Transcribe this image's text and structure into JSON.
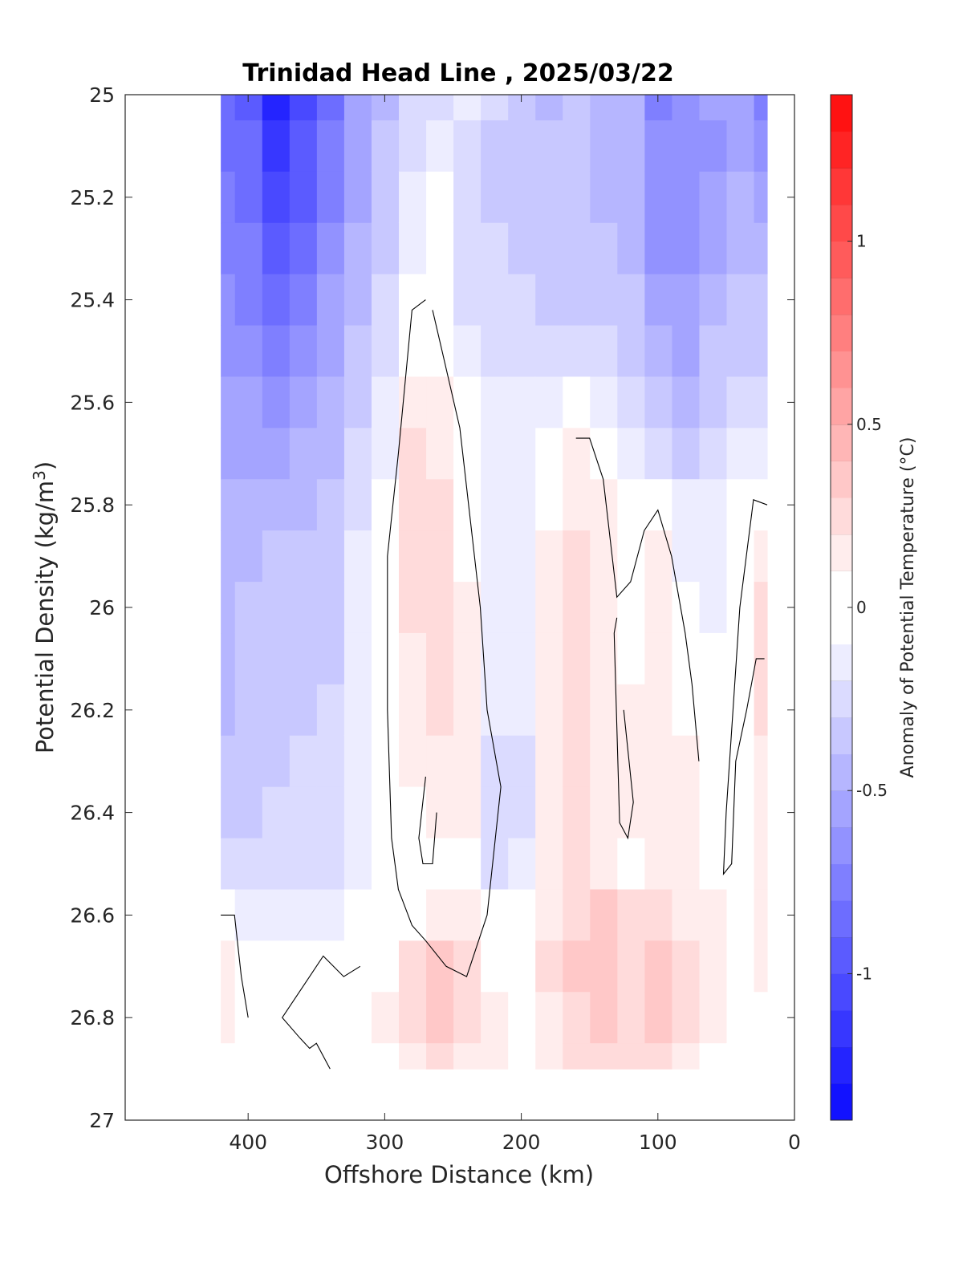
{
  "chart_data": {
    "type": "heatmap",
    "subtype": "filled contour section",
    "title": "Trinidad Head Line , 2025/03/22",
    "xlabel": "Offshore Distance (km)",
    "ylabel_main": "Potential Density (kg/m",
    "ylabel_sup": "3",
    "ylabel_end": ")",
    "colorbar_label": "Anomaly of Potential Temperature (°C)",
    "x_axis": {
      "reversed": true,
      "xlim": [
        0,
        490
      ],
      "ticks": [
        400,
        300,
        200,
        100,
        0
      ],
      "tick_labels": [
        "400",
        "300",
        "200",
        "100",
        "0"
      ]
    },
    "y_axis": {
      "reversed": true,
      "ylim": [
        25,
        27
      ],
      "ticks": [
        25,
        25.2,
        25.4,
        25.6,
        25.8,
        26,
        26.2,
        26.4,
        26.6,
        26.8,
        27
      ],
      "tick_labels": [
        "25",
        "25.2",
        "25.4",
        "25.6",
        "25.8",
        "26",
        "26.2",
        "26.4",
        "26.6",
        "26.8",
        "27"
      ]
    },
    "colorbar": {
      "range": [
        -1.4,
        1.4
      ],
      "level_step": 0.1,
      "ticks": [
        -1,
        -0.5,
        0,
        0.5,
        1
      ],
      "tick_labels": [
        "-1",
        "-0.5",
        "0",
        "0.5",
        "1"
      ],
      "colormap": "blue-white-red",
      "neg_color": "#0000ff",
      "pos_color": "#ff0000",
      "zero_color": "#ffffff"
    },
    "data_extent": {
      "x": [
        20,
        420
      ],
      "y": [
        25,
        26.9
      ]
    },
    "grid": {
      "x": [
        20,
        40,
        60,
        80,
        100,
        120,
        140,
        160,
        180,
        200,
        220,
        240,
        260,
        280,
        300,
        320,
        340,
        360,
        380,
        400,
        420
      ],
      "y": [
        25.0,
        25.1,
        25.2,
        25.3,
        25.4,
        25.5,
        25.6,
        25.7,
        25.8,
        25.9,
        26.0,
        26.1,
        26.2,
        26.3,
        26.4,
        26.5,
        26.6,
        26.7,
        26.8,
        26.9
      ],
      "z": [
        [
          -0.75,
          -0.55,
          -0.55,
          -0.6,
          -0.7,
          -0.45,
          -0.45,
          -0.35,
          -0.4,
          -0.3,
          -0.25,
          -0.15,
          -0.2,
          -0.25,
          -0.4,
          -0.55,
          -0.8,
          -1.0,
          -1.2,
          -0.9,
          -0.85
        ],
        [
          -0.6,
          -0.5,
          -0.6,
          -0.65,
          -0.65,
          -0.45,
          -0.4,
          -0.35,
          -0.35,
          -0.3,
          -0.3,
          -0.2,
          -0.1,
          -0.2,
          -0.35,
          -0.5,
          -0.75,
          -0.95,
          -1.1,
          -0.85,
          -0.8
        ],
        [
          -0.55,
          -0.45,
          -0.55,
          -0.65,
          -0.65,
          -0.45,
          -0.4,
          -0.35,
          -0.35,
          -0.3,
          -0.3,
          -0.25,
          -0.05,
          -0.15,
          -0.3,
          -0.5,
          -0.7,
          -0.9,
          -1.0,
          -0.8,
          -0.75
        ],
        [
          -0.45,
          -0.4,
          -0.5,
          -0.6,
          -0.6,
          -0.4,
          -0.35,
          -0.35,
          -0.3,
          -0.3,
          -0.25,
          -0.25,
          -0.05,
          -0.1,
          -0.3,
          -0.45,
          -0.6,
          -0.8,
          -0.9,
          -0.75,
          -0.7
        ],
        [
          -0.35,
          -0.35,
          -0.45,
          -0.55,
          -0.55,
          -0.35,
          -0.35,
          -0.3,
          -0.3,
          -0.25,
          -0.25,
          -0.2,
          0.0,
          -0.05,
          -0.25,
          -0.4,
          -0.55,
          -0.7,
          -0.8,
          -0.7,
          -0.65
        ],
        [
          -0.3,
          -0.3,
          -0.35,
          -0.5,
          -0.45,
          -0.3,
          -0.25,
          -0.2,
          -0.2,
          -0.2,
          -0.2,
          -0.1,
          0.05,
          0.05,
          -0.2,
          -0.35,
          -0.5,
          -0.6,
          -0.7,
          -0.6,
          -0.6
        ],
        [
          -0.2,
          -0.25,
          -0.3,
          -0.4,
          -0.35,
          -0.2,
          -0.15,
          -0.05,
          -0.1,
          -0.15,
          -0.15,
          -0.05,
          0.1,
          0.15,
          -0.15,
          -0.3,
          -0.45,
          -0.55,
          -0.6,
          -0.55,
          -0.55
        ],
        [
          -0.1,
          -0.15,
          -0.2,
          -0.3,
          -0.25,
          -0.1,
          0.0,
          0.1,
          0.0,
          -0.1,
          -0.1,
          0.0,
          0.15,
          0.2,
          -0.1,
          -0.25,
          -0.4,
          -0.45,
          -0.5,
          -0.5,
          -0.5
        ],
        [
          0.05,
          -0.05,
          -0.1,
          -0.15,
          0.0,
          0.0,
          0.1,
          0.15,
          0.05,
          -0.1,
          -0.1,
          0.0,
          0.2,
          0.25,
          -0.05,
          -0.2,
          -0.35,
          -0.4,
          -0.4,
          -0.45,
          -0.45
        ],
        [
          0.15,
          -0.05,
          -0.1,
          -0.1,
          0.1,
          0.05,
          0.15,
          0.2,
          0.1,
          -0.15,
          -0.1,
          0.05,
          0.2,
          0.25,
          -0.05,
          -0.15,
          -0.3,
          -0.35,
          -0.35,
          -0.4,
          -0.4
        ],
        [
          0.2,
          0.0,
          -0.1,
          -0.05,
          0.15,
          0.05,
          0.15,
          0.25,
          0.15,
          -0.1,
          -0.1,
          0.1,
          0.2,
          0.2,
          0.0,
          -0.15,
          -0.3,
          -0.3,
          -0.3,
          -0.35,
          -0.4
        ],
        [
          0.2,
          0.05,
          -0.05,
          -0.05,
          0.15,
          0.05,
          0.15,
          0.25,
          0.15,
          -0.15,
          -0.1,
          0.1,
          0.2,
          0.15,
          0.0,
          -0.15,
          -0.3,
          -0.3,
          -0.3,
          -0.35,
          -0.4
        ],
        [
          0.2,
          0.05,
          -0.05,
          0.05,
          0.15,
          0.1,
          0.15,
          0.25,
          0.15,
          -0.15,
          -0.15,
          0.1,
          0.2,
          0.1,
          0.0,
          -0.15,
          -0.25,
          -0.3,
          -0.3,
          -0.35,
          -0.4
        ],
        [
          0.15,
          0.05,
          0.0,
          0.1,
          0.15,
          0.15,
          0.15,
          0.2,
          0.15,
          -0.2,
          -0.2,
          0.15,
          0.15,
          0.1,
          0.0,
          -0.15,
          -0.25,
          -0.25,
          -0.3,
          -0.35,
          -0.35
        ],
        [
          0.15,
          0.05,
          0.05,
          0.15,
          0.15,
          0.1,
          0.15,
          0.2,
          0.15,
          -0.2,
          -0.2,
          0.1,
          0.1,
          0.05,
          0.0,
          -0.15,
          -0.2,
          -0.25,
          -0.25,
          -0.3,
          -0.3
        ],
        [
          0.15,
          0.05,
          0.05,
          0.15,
          0.15,
          0.05,
          0.15,
          0.2,
          0.15,
          -0.15,
          -0.2,
          0.05,
          0.0,
          0.05,
          0.0,
          -0.1,
          -0.2,
          -0.2,
          -0.2,
          -0.25,
          -0.25
        ],
        [
          0.15,
          0.05,
          0.1,
          0.15,
          0.2,
          0.2,
          0.3,
          0.25,
          0.15,
          -0.05,
          -0.05,
          0.15,
          0.15,
          0.05,
          0.0,
          -0.05,
          -0.1,
          -0.15,
          -0.15,
          -0.1,
          -0.05
        ],
        [
          0.1,
          0.05,
          0.1,
          0.2,
          0.3,
          0.25,
          0.35,
          0.3,
          0.2,
          0.0,
          0.05,
          0.2,
          0.3,
          0.2,
          0.05,
          0.0,
          -0.05,
          -0.05,
          0.0,
          -0.05,
          0.1
        ],
        [
          0.05,
          0.0,
          0.1,
          0.2,
          0.3,
          0.25,
          0.3,
          0.25,
          0.15,
          0.0,
          0.1,
          0.2,
          0.3,
          0.25,
          0.1,
          0.0,
          0.0,
          0.0,
          0.0,
          0.05,
          0.1
        ],
        [
          0.05,
          0.0,
          0.05,
          0.1,
          0.2,
          0.2,
          0.2,
          0.2,
          0.1,
          0.0,
          0.1,
          0.15,
          0.2,
          0.15,
          0.05,
          0.0,
          0.0,
          0.0,
          0.0,
          0.0,
          0.0
        ]
      ]
    },
    "zero_contours": [
      [
        [
          20,
          25.8
        ],
        [
          30,
          25.79
        ],
        [
          40,
          26.0
        ],
        [
          50,
          26.4
        ],
        [
          52,
          26.52
        ],
        [
          46,
          26.5
        ],
        [
          43,
          26.3
        ],
        [
          35,
          26.2
        ],
        [
          28,
          26.1
        ],
        [
          22,
          26.1
        ]
      ],
      [
        [
          160,
          25.67
        ],
        [
          150,
          25.67
        ],
        [
          140,
          25.75
        ],
        [
          130,
          25.98
        ],
        [
          120,
          25.95
        ],
        [
          110,
          25.85
        ],
        [
          100,
          25.81
        ],
        [
          90,
          25.9
        ],
        [
          80,
          26.05
        ],
        [
          75,
          26.15
        ],
        [
          70,
          26.3
        ]
      ],
      [
        [
          130,
          26.02
        ],
        [
          132,
          26.05
        ],
        [
          128,
          26.42
        ],
        [
          122,
          26.45
        ],
        [
          118,
          26.38
        ],
        [
          125,
          26.2
        ]
      ],
      [
        [
          270,
          25.4
        ],
        [
          280,
          25.42
        ],
        [
          290,
          25.7
        ],
        [
          298,
          25.9
        ],
        [
          298,
          26.2
        ],
        [
          295,
          26.45
        ],
        [
          290,
          26.55
        ],
        [
          280,
          26.62
        ],
        [
          270,
          26.65
        ],
        [
          255,
          26.7
        ],
        [
          240,
          26.72
        ],
        [
          225,
          26.6
        ],
        [
          215,
          26.35
        ],
        [
          225,
          26.2
        ],
        [
          230,
          26.0
        ],
        [
          245,
          25.65
        ],
        [
          258,
          25.5
        ],
        [
          265,
          25.42
        ]
      ],
      [
        [
          270,
          26.33
        ],
        [
          275,
          26.45
        ],
        [
          272,
          26.5
        ],
        [
          265,
          26.5
        ],
        [
          262,
          26.4
        ]
      ],
      [
        [
          420,
          26.6
        ],
        [
          410,
          26.6
        ],
        [
          405,
          26.72
        ],
        [
          400,
          26.8
        ]
      ],
      [
        [
          340,
          26.9
        ],
        [
          350,
          26.85
        ],
        [
          355,
          26.86
        ],
        [
          362,
          26.84
        ],
        [
          375,
          26.8
        ],
        [
          370,
          26.78
        ],
        [
          355,
          26.72
        ],
        [
          345,
          26.68
        ],
        [
          330,
          26.72
        ],
        [
          318,
          26.7
        ]
      ]
    ]
  }
}
